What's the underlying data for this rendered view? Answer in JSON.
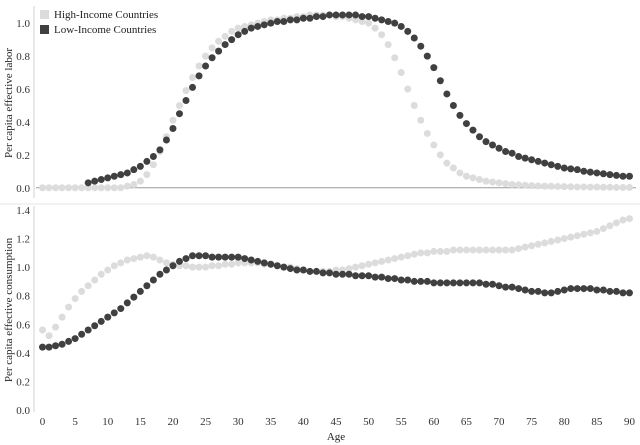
{
  "chart_data": [
    {
      "type": "scatter",
      "ylabel": "Per capita effective labor",
      "xlabel": "",
      "xlim": [
        -1,
        91
      ],
      "ylim": [
        -0.05,
        1.08
      ],
      "yticks": [
        "0.0",
        "0.2",
        "0.4",
        "0.6",
        "0.8",
        "1.0"
      ],
      "grid": false,
      "legend_position": "top-left",
      "series": [
        {
          "name": "High-Income Countries",
          "color": "#dcdcdc",
          "x": [
            0,
            1,
            2,
            3,
            4,
            5,
            6,
            7,
            8,
            9,
            10,
            11,
            12,
            13,
            14,
            15,
            16,
            17,
            18,
            19,
            20,
            21,
            22,
            23,
            24,
            25,
            26,
            27,
            28,
            29,
            30,
            31,
            32,
            33,
            34,
            35,
            36,
            37,
            38,
            39,
            40,
            41,
            42,
            43,
            44,
            45,
            46,
            47,
            48,
            49,
            50,
            51,
            52,
            53,
            54,
            55,
            56,
            57,
            58,
            59,
            60,
            61,
            62,
            63,
            64,
            65,
            66,
            67,
            68,
            69,
            70,
            71,
            72,
            73,
            74,
            75,
            76,
            77,
            78,
            79,
            80,
            81,
            82,
            83,
            84,
            85,
            86,
            87,
            88,
            89,
            90
          ],
          "y": [
            0,
            0,
            0,
            0,
            0,
            0,
            0,
            0,
            0,
            0,
            0,
            0,
            0,
            0.01,
            0.02,
            0.04,
            0.08,
            0.14,
            0.22,
            0.31,
            0.41,
            0.5,
            0.59,
            0.67,
            0.74,
            0.8,
            0.85,
            0.89,
            0.92,
            0.95,
            0.97,
            0.98,
            0.99,
            1.0,
            1.01,
            1.02,
            1.02,
            1.03,
            1.03,
            1.04,
            1.04,
            1.05,
            1.05,
            1.05,
            1.05,
            1.04,
            1.04,
            1.03,
            1.02,
            1.01,
            1.0,
            0.97,
            0.93,
            0.87,
            0.79,
            0.7,
            0.6,
            0.5,
            0.41,
            0.33,
            0.26,
            0.2,
            0.15,
            0.12,
            0.09,
            0.07,
            0.06,
            0.05,
            0.04,
            0.035,
            0.03,
            0.025,
            0.02,
            0.018,
            0.015,
            0.013,
            0.011,
            0.01,
            0.009,
            0.008,
            0.007,
            0.006,
            0.005,
            0.005,
            0.004,
            0.004,
            0.003,
            0.003,
            0.002,
            0.002,
            0.002
          ]
        },
        {
          "name": "Low-Income Countries",
          "color": "#404040",
          "x": [
            7,
            8,
            9,
            10,
            11,
            12,
            13,
            14,
            15,
            16,
            17,
            18,
            19,
            20,
            21,
            22,
            23,
            24,
            25,
            26,
            27,
            28,
            29,
            30,
            31,
            32,
            33,
            34,
            35,
            36,
            37,
            38,
            39,
            40,
            41,
            42,
            43,
            44,
            45,
            46,
            47,
            48,
            49,
            50,
            51,
            52,
            53,
            54,
            55,
            56,
            57,
            58,
            59,
            60,
            61,
            62,
            63,
            64,
            65,
            66,
            67,
            68,
            69,
            70,
            71,
            72,
            73,
            74,
            75,
            76,
            77,
            78,
            79,
            80,
            81,
            82,
            83,
            84,
            85,
            86,
            87,
            88,
            89,
            90
          ],
          "y": [
            0.03,
            0.04,
            0.05,
            0.06,
            0.07,
            0.08,
            0.09,
            0.11,
            0.13,
            0.16,
            0.19,
            0.23,
            0.29,
            0.36,
            0.45,
            0.53,
            0.61,
            0.68,
            0.74,
            0.79,
            0.83,
            0.87,
            0.9,
            0.93,
            0.95,
            0.97,
            0.98,
            0.99,
            1.0,
            1.01,
            1.01,
            1.02,
            1.02,
            1.03,
            1.03,
            1.04,
            1.04,
            1.05,
            1.05,
            1.05,
            1.05,
            1.05,
            1.04,
            1.04,
            1.03,
            1.02,
            1.01,
            1.0,
            0.98,
            0.95,
            0.91,
            0.86,
            0.8,
            0.73,
            0.65,
            0.57,
            0.5,
            0.44,
            0.39,
            0.35,
            0.31,
            0.28,
            0.26,
            0.24,
            0.22,
            0.21,
            0.19,
            0.18,
            0.17,
            0.16,
            0.15,
            0.14,
            0.13,
            0.12,
            0.115,
            0.11,
            0.1,
            0.095,
            0.09,
            0.085,
            0.08,
            0.075,
            0.07,
            0.07
          ]
        }
      ]
    },
    {
      "type": "scatter",
      "ylabel": "Per capita effective consumption",
      "xlabel": "Age",
      "xlim": [
        -1,
        91
      ],
      "ylim": [
        0,
        1.4
      ],
      "xticks": [
        "0",
        "5",
        "10",
        "15",
        "20",
        "25",
        "30",
        "35",
        "40",
        "45",
        "50",
        "55",
        "60",
        "65",
        "70",
        "75",
        "80",
        "85",
        "90"
      ],
      "yticks": [
        "0.0",
        "0.2",
        "0.4",
        "0.6",
        "0.8",
        "1.0",
        "1.2",
        "1.4"
      ],
      "grid": false,
      "series": [
        {
          "name": "High-Income Countries",
          "color": "#dcdcdc",
          "x": [
            0,
            1,
            2,
            3,
            4,
            5,
            6,
            7,
            8,
            9,
            10,
            11,
            12,
            13,
            14,
            15,
            16,
            17,
            18,
            19,
            20,
            21,
            22,
            23,
            24,
            25,
            26,
            27,
            28,
            29,
            30,
            31,
            32,
            33,
            34,
            35,
            36,
            37,
            38,
            39,
            40,
            41,
            42,
            43,
            44,
            45,
            46,
            47,
            48,
            49,
            50,
            51,
            52,
            53,
            54,
            55,
            56,
            57,
            58,
            59,
            60,
            61,
            62,
            63,
            64,
            65,
            66,
            67,
            68,
            69,
            70,
            71,
            72,
            73,
            74,
            75,
            76,
            77,
            78,
            79,
            80,
            81,
            82,
            83,
            84,
            85,
            86,
            87,
            88,
            89,
            90
          ],
          "y": [
            0.56,
            0.52,
            0.58,
            0.65,
            0.72,
            0.78,
            0.83,
            0.87,
            0.91,
            0.95,
            0.98,
            1.01,
            1.03,
            1.05,
            1.06,
            1.07,
            1.08,
            1.07,
            1.05,
            1.03,
            1.02,
            1.01,
            1.01,
            1.0,
            1.0,
            1.0,
            1.01,
            1.01,
            1.02,
            1.02,
            1.03,
            1.03,
            1.03,
            1.03,
            1.02,
            1.02,
            1.01,
            1.0,
            1.0,
            0.99,
            0.98,
            0.97,
            0.97,
            0.97,
            0.97,
            0.98,
            0.98,
            0.99,
            1.0,
            1.01,
            1.02,
            1.03,
            1.04,
            1.05,
            1.06,
            1.07,
            1.08,
            1.09,
            1.1,
            1.1,
            1.11,
            1.11,
            1.11,
            1.12,
            1.12,
            1.12,
            1.12,
            1.12,
            1.12,
            1.12,
            1.12,
            1.12,
            1.12,
            1.13,
            1.14,
            1.15,
            1.16,
            1.17,
            1.18,
            1.19,
            1.2,
            1.21,
            1.22,
            1.23,
            1.24,
            1.25,
            1.27,
            1.29,
            1.31,
            1.33,
            1.34
          ]
        },
        {
          "name": "Low-Income Countries",
          "color": "#404040",
          "x": [
            0,
            1,
            2,
            3,
            4,
            5,
            6,
            7,
            8,
            9,
            10,
            11,
            12,
            13,
            14,
            15,
            16,
            17,
            18,
            19,
            20,
            21,
            22,
            23,
            24,
            25,
            26,
            27,
            28,
            29,
            30,
            31,
            32,
            33,
            34,
            35,
            36,
            37,
            38,
            39,
            40,
            41,
            42,
            43,
            44,
            45,
            46,
            47,
            48,
            49,
            50,
            51,
            52,
            53,
            54,
            55,
            56,
            57,
            58,
            59,
            60,
            61,
            62,
            63,
            64,
            65,
            66,
            67,
            68,
            69,
            70,
            71,
            72,
            73,
            74,
            75,
            76,
            77,
            78,
            79,
            80,
            81,
            82,
            83,
            84,
            85,
            86,
            87,
            88,
            89,
            90
          ],
          "y": [
            0.44,
            0.44,
            0.45,
            0.46,
            0.48,
            0.5,
            0.53,
            0.56,
            0.59,
            0.62,
            0.65,
            0.68,
            0.71,
            0.75,
            0.79,
            0.83,
            0.87,
            0.91,
            0.95,
            0.98,
            1.01,
            1.04,
            1.06,
            1.08,
            1.08,
            1.08,
            1.07,
            1.07,
            1.07,
            1.07,
            1.07,
            1.06,
            1.05,
            1.04,
            1.03,
            1.02,
            1.01,
            1.0,
            0.99,
            0.98,
            0.98,
            0.97,
            0.97,
            0.96,
            0.96,
            0.95,
            0.95,
            0.95,
            0.94,
            0.94,
            0.94,
            0.93,
            0.93,
            0.92,
            0.92,
            0.91,
            0.91,
            0.9,
            0.9,
            0.9,
            0.89,
            0.89,
            0.89,
            0.89,
            0.89,
            0.89,
            0.89,
            0.89,
            0.88,
            0.88,
            0.87,
            0.86,
            0.86,
            0.85,
            0.84,
            0.83,
            0.83,
            0.82,
            0.82,
            0.83,
            0.84,
            0.85,
            0.85,
            0.85,
            0.85,
            0.84,
            0.84,
            0.83,
            0.83,
            0.82,
            0.82
          ]
        }
      ]
    }
  ]
}
